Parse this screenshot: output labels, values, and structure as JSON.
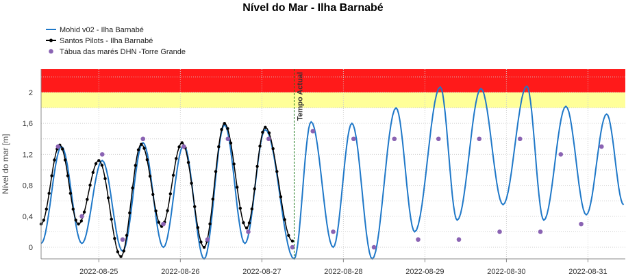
{
  "chart_data": {
    "type": "line",
    "title": "Nível do Mar - Ilha Barnabé",
    "ylabel": "Nível do mar [m]",
    "xlabel": "",
    "ylim": [
      -0.15,
      2.3
    ],
    "xlim": [
      "2022-08-24T07:00",
      "2022-08-31T11:00"
    ],
    "yticks": [
      0,
      0.4,
      0.8,
      1.2,
      1.6,
      2
    ],
    "ytick_labels": [
      "0",
      "0,4",
      "0,8",
      "1,2",
      "1,6",
      "2"
    ],
    "xticks": [
      "2022-08-25",
      "2022-08-26",
      "2022-08-27",
      "2022-08-28",
      "2022-08-29",
      "2022-08-30",
      "2022-08-31"
    ],
    "grid": true,
    "legend_position": "top-left",
    "bands": [
      {
        "from": 1.8,
        "to": 2.0,
        "color": "#ffff99"
      },
      {
        "from": 2.0,
        "to": 2.3,
        "color": "#ff1a1a"
      }
    ],
    "current_time": {
      "label": "Tempo Actual",
      "x": "2022-08-27T09:30",
      "color": "#1a7a1a"
    },
    "series": [
      {
        "name": "Mohid v02 - Ilha Barnabé",
        "style": "line",
        "color": "#1f78c8",
        "points": [
          [
            "2022-08-24T07:00",
            0.05
          ],
          [
            "2022-08-24T13:00",
            1.3
          ],
          [
            "2022-08-24T19:00",
            0.05
          ],
          [
            "2022-08-25T01:00",
            1.12
          ],
          [
            "2022-08-25T07:00",
            -0.05
          ],
          [
            "2022-08-25T13:00",
            1.35
          ],
          [
            "2022-08-25T19:00",
            0.0
          ],
          [
            "2022-08-26T01:00",
            1.32
          ],
          [
            "2022-08-26T07:00",
            -0.15
          ],
          [
            "2022-08-26T13:00",
            1.58
          ],
          [
            "2022-08-26T19:00",
            0.05
          ],
          [
            "2022-08-27T01:00",
            1.52
          ],
          [
            "2022-08-27T09:30",
            -0.15
          ],
          [
            "2022-08-27T14:30",
            1.62
          ],
          [
            "2022-08-27T21:00",
            0.0
          ],
          [
            "2022-08-28T02:30",
            1.6
          ],
          [
            "2022-08-28T08:30",
            -0.15
          ],
          [
            "2022-08-28T15:30",
            1.8
          ],
          [
            "2022-08-28T21:00",
            0.2
          ],
          [
            "2022-08-29T04:30",
            2.07
          ],
          [
            "2022-08-29T09:30",
            0.35
          ],
          [
            "2022-08-29T16:30",
            2.05
          ],
          [
            "2022-08-29T23:00",
            0.55
          ],
          [
            "2022-08-30T06:00",
            2.08
          ],
          [
            "2022-08-30T11:00",
            0.35
          ],
          [
            "2022-08-30T17:30",
            1.82
          ],
          [
            "2022-08-30T23:30",
            0.42
          ],
          [
            "2022-08-31T05:30",
            1.72
          ],
          [
            "2022-08-31T10:30",
            0.55
          ]
        ]
      },
      {
        "name": "Santos Pilots - Ilha Barnabé",
        "style": "line-markers",
        "color": "#000000",
        "points": [
          [
            "2022-08-24T07:00",
            0.3
          ],
          [
            "2022-08-24T12:30",
            1.32
          ],
          [
            "2022-08-24T18:00",
            0.3
          ],
          [
            "2022-08-25T00:00",
            1.12
          ],
          [
            "2022-08-25T06:30",
            -0.12
          ],
          [
            "2022-08-25T12:30",
            1.33
          ],
          [
            "2022-08-25T18:30",
            0.27
          ],
          [
            "2022-08-26T00:30",
            1.35
          ],
          [
            "2022-08-26T07:00",
            0.0
          ],
          [
            "2022-08-26T13:00",
            1.6
          ],
          [
            "2022-08-26T19:30",
            0.25
          ],
          [
            "2022-08-27T01:00",
            1.55
          ],
          [
            "2022-08-27T09:00",
            0.08
          ]
        ]
      },
      {
        "name": "Tábua das marés DHN -Torre Grande",
        "style": "markers",
        "color": "#8a63b3",
        "points": [
          [
            "2022-08-24T12:00",
            1.3
          ],
          [
            "2022-08-24T19:00",
            0.4
          ],
          [
            "2022-08-25T01:00",
            1.2
          ],
          [
            "2022-08-25T07:00",
            0.1
          ],
          [
            "2022-08-25T13:00",
            1.4
          ],
          [
            "2022-08-25T19:00",
            0.3
          ],
          [
            "2022-08-26T01:00",
            1.3
          ],
          [
            "2022-08-26T08:00",
            0.1
          ],
          [
            "2022-08-26T14:00",
            1.4
          ],
          [
            "2022-08-26T20:00",
            0.2
          ],
          [
            "2022-08-27T02:00",
            1.4
          ],
          [
            "2022-08-27T09:00",
            0.0
          ],
          [
            "2022-08-27T15:00",
            1.5
          ],
          [
            "2022-08-27T21:00",
            0.2
          ],
          [
            "2022-08-28T03:00",
            1.4
          ],
          [
            "2022-08-28T09:00",
            0.0
          ],
          [
            "2022-08-28T15:00",
            1.4
          ],
          [
            "2022-08-28T22:00",
            0.1
          ],
          [
            "2022-08-29T04:00",
            1.4
          ],
          [
            "2022-08-29T10:00",
            0.1
          ],
          [
            "2022-08-29T16:00",
            1.4
          ],
          [
            "2022-08-29T22:00",
            0.2
          ],
          [
            "2022-08-30T04:00",
            1.4
          ],
          [
            "2022-08-30T10:00",
            0.2
          ],
          [
            "2022-08-30T16:00",
            1.2
          ],
          [
            "2022-08-30T22:00",
            0.3
          ],
          [
            "2022-08-31T04:00",
            1.3
          ]
        ]
      }
    ]
  }
}
